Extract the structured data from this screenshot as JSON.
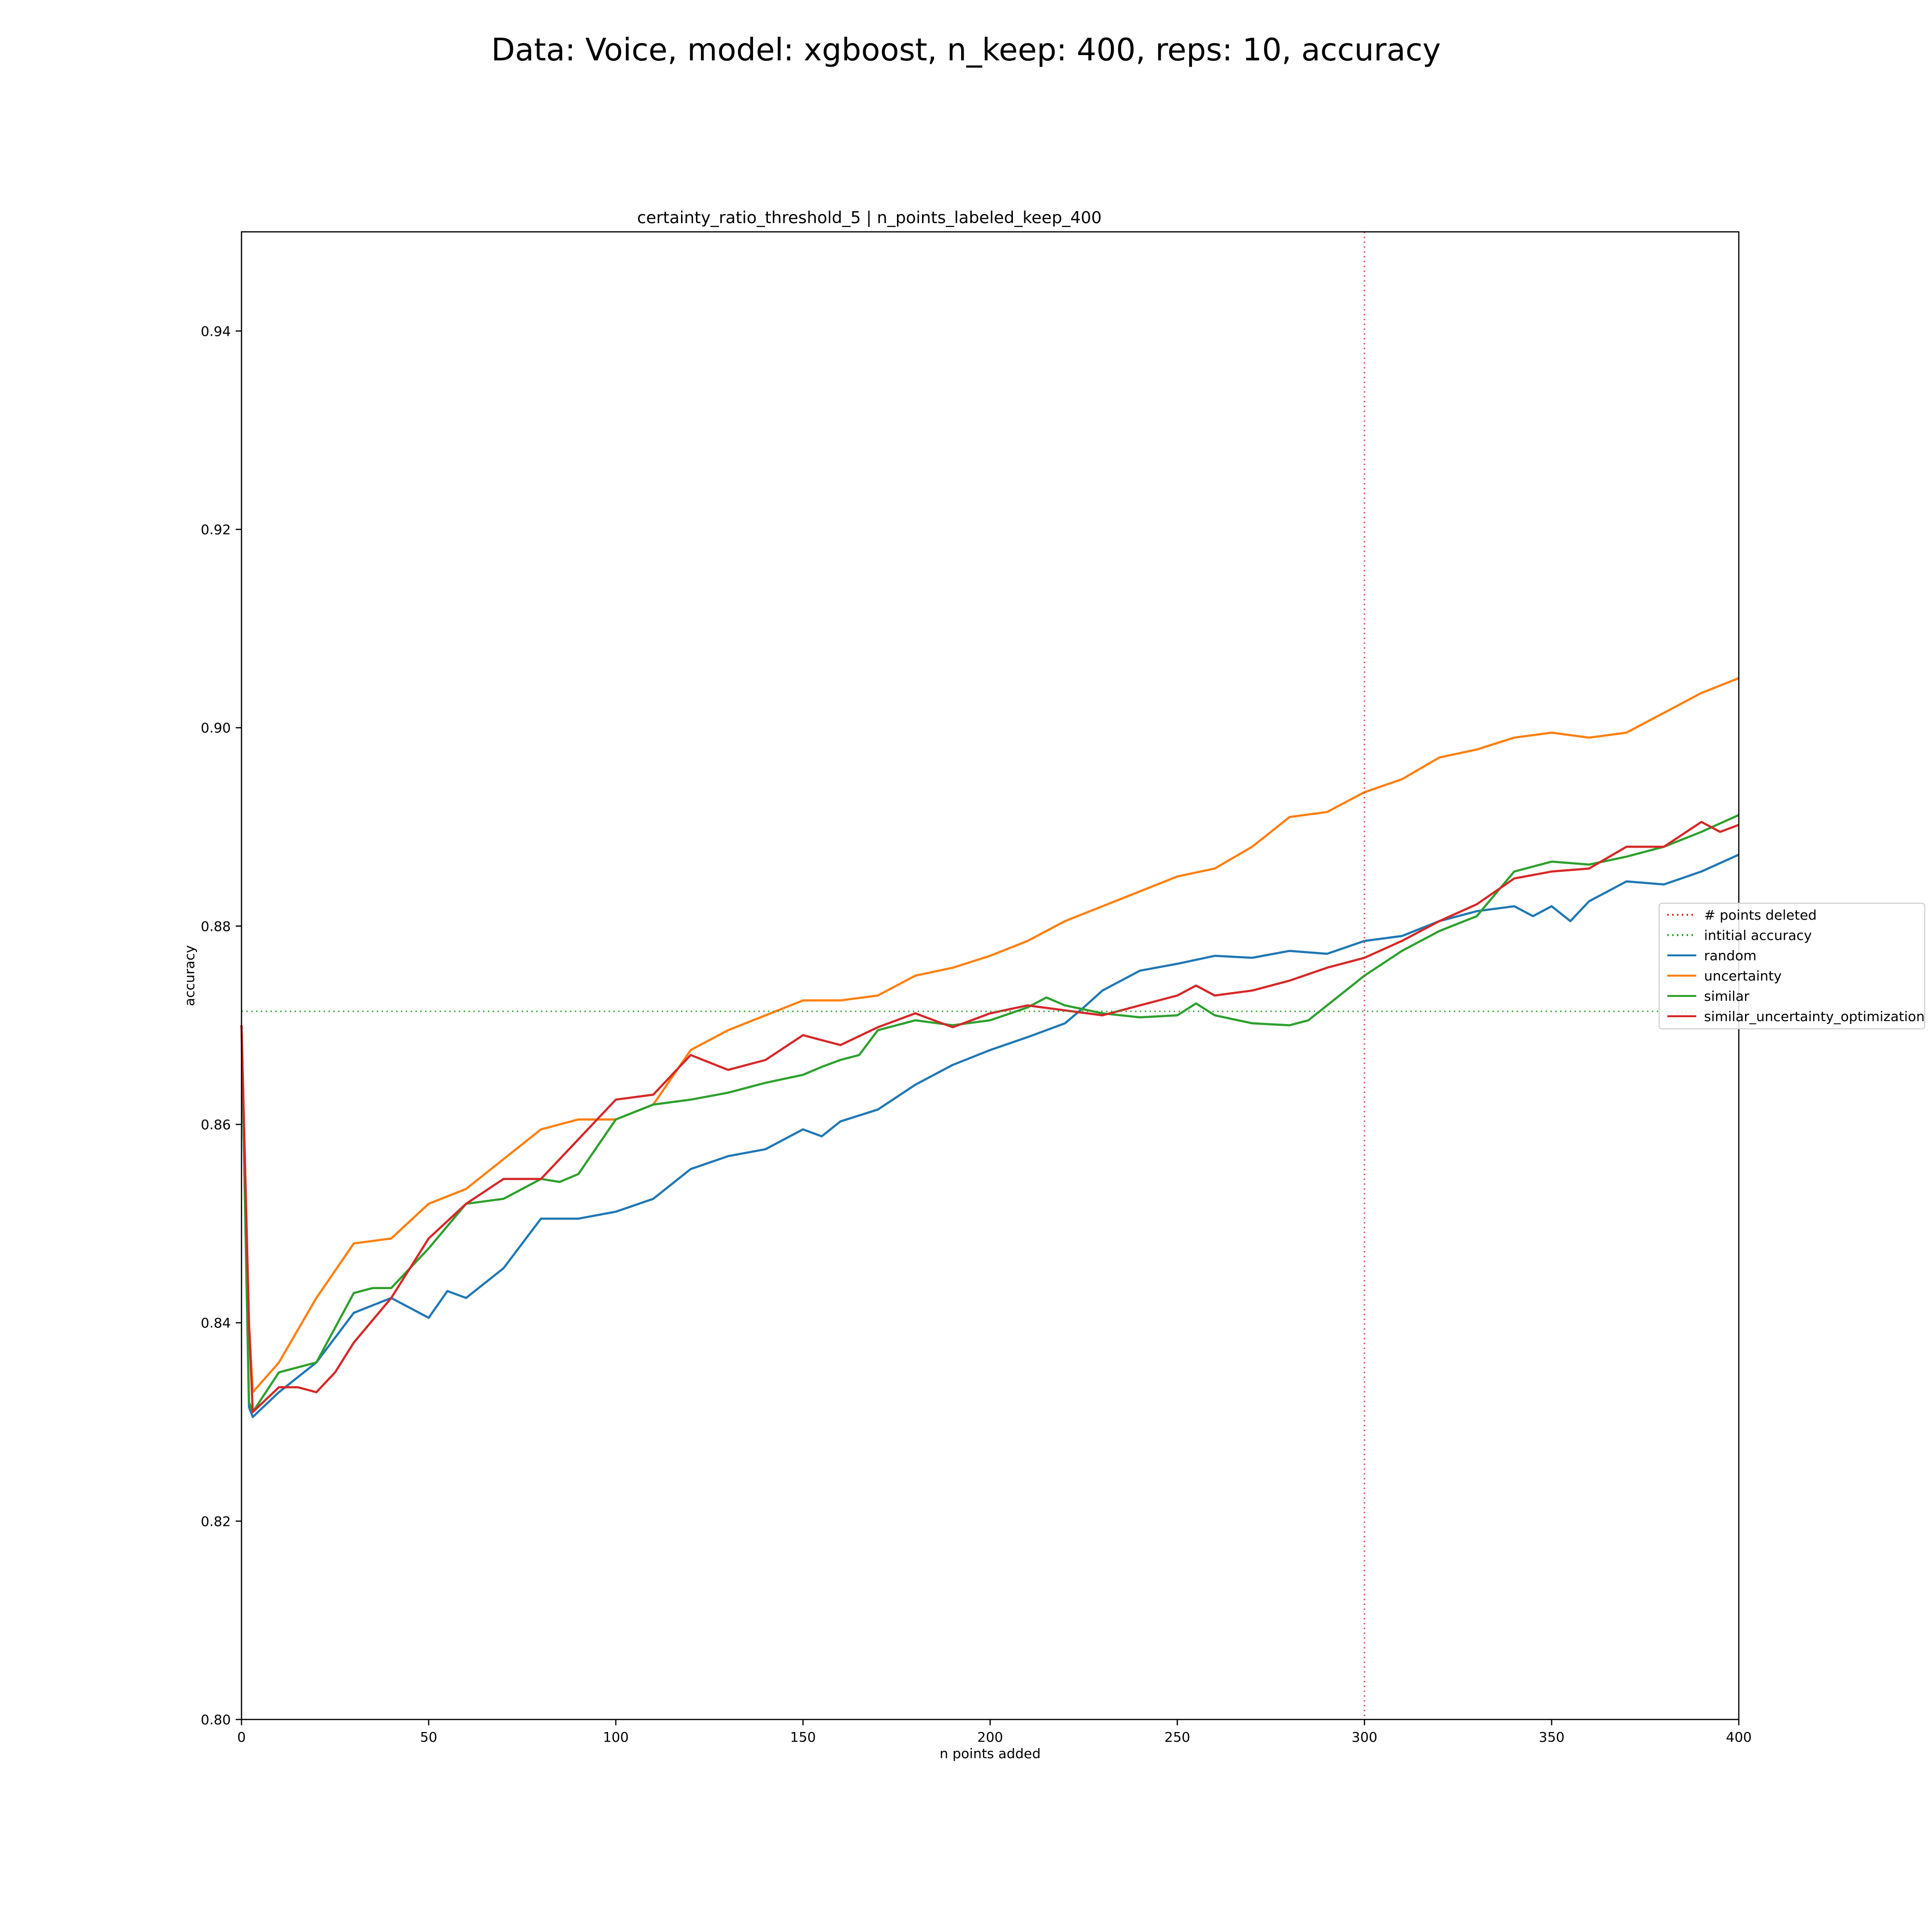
{
  "chart_data": {
    "type": "line",
    "title": "Data: Voice, model: xgboost, n_keep: 400, reps: 10, accuracy",
    "subtitle": "certainty_ratio_threshold_5 | n_points_labeled_keep_400",
    "xlabel": "n points added",
    "ylabel": "accuracy",
    "xlim": [
      0,
      400
    ],
    "ylim": [
      0.8,
      0.95
    ],
    "xticks": [
      0,
      50,
      100,
      150,
      200,
      250,
      300,
      350,
      400
    ],
    "yticks": [
      0.8,
      0.82,
      0.84,
      0.86,
      0.88,
      0.9,
      0.92,
      0.94
    ],
    "ytick_labels": [
      "0.80",
      "0.82",
      "0.84",
      "0.86",
      "0.88",
      "0.90",
      "0.92",
      "0.94"
    ],
    "grid": false,
    "legend_position": "right",
    "reference_lines": [
      {
        "name": "# points deleted",
        "orientation": "vertical",
        "value": 300,
        "color": "#d62728",
        "style": "dotted"
      },
      {
        "name": "intitial accuracy",
        "orientation": "horizontal",
        "value": 0.8714,
        "color": "#2ca02c",
        "style": "dotted"
      }
    ],
    "series": [
      {
        "name": "random",
        "color": "#1f77b4",
        "x": [
          0,
          2,
          3,
          10,
          20,
          30,
          40,
          45,
          50,
          55,
          60,
          70,
          80,
          90,
          100,
          110,
          120,
          130,
          140,
          150,
          155,
          160,
          170,
          180,
          190,
          200,
          210,
          220,
          225,
          230,
          240,
          250,
          260,
          270,
          280,
          290,
          300,
          310,
          320,
          330,
          340,
          345,
          350,
          355,
          360,
          370,
          380,
          390,
          400
        ],
        "y": [
          0.87,
          0.8315,
          0.8305,
          0.833,
          0.836,
          0.841,
          0.8425,
          0.8415,
          0.8405,
          0.8432,
          0.8425,
          0.8455,
          0.8505,
          0.8505,
          0.8512,
          0.8525,
          0.8555,
          0.8568,
          0.8575,
          0.8595,
          0.8588,
          0.8603,
          0.8615,
          0.864,
          0.866,
          0.8675,
          0.8688,
          0.8702,
          0.8718,
          0.8735,
          0.8755,
          0.8762,
          0.877,
          0.8768,
          0.8775,
          0.8772,
          0.8785,
          0.879,
          0.8805,
          0.8815,
          0.882,
          0.881,
          0.882,
          0.8805,
          0.8825,
          0.8845,
          0.8842,
          0.8855,
          0.8872
        ]
      },
      {
        "name": "uncertainty",
        "color": "#ff7f0e",
        "x": [
          0,
          2,
          3,
          10,
          20,
          30,
          40,
          50,
          60,
          70,
          80,
          90,
          100,
          110,
          120,
          130,
          140,
          150,
          160,
          170,
          180,
          190,
          200,
          210,
          220,
          230,
          240,
          250,
          260,
          270,
          280,
          290,
          300,
          310,
          320,
          330,
          340,
          350,
          360,
          370,
          380,
          390,
          400
        ],
        "y": [
          0.87,
          0.84,
          0.833,
          0.836,
          0.8425,
          0.848,
          0.8485,
          0.852,
          0.8535,
          0.8565,
          0.8595,
          0.8605,
          0.8605,
          0.862,
          0.8675,
          0.8695,
          0.871,
          0.8725,
          0.8725,
          0.873,
          0.875,
          0.8758,
          0.877,
          0.8785,
          0.8805,
          0.882,
          0.8835,
          0.885,
          0.8858,
          0.888,
          0.891,
          0.8915,
          0.8935,
          0.8948,
          0.897,
          0.8978,
          0.899,
          0.8995,
          0.899,
          0.8995,
          0.9015,
          0.9035,
          0.905
        ]
      },
      {
        "name": "similar",
        "color": "#2ca02c",
        "x": [
          0,
          2,
          3,
          10,
          20,
          30,
          35,
          40,
          50,
          60,
          70,
          75,
          80,
          85,
          90,
          100,
          110,
          120,
          130,
          140,
          150,
          155,
          160,
          165,
          170,
          180,
          190,
          200,
          210,
          215,
          220,
          230,
          240,
          250,
          255,
          260,
          270,
          280,
          285,
          290,
          300,
          310,
          320,
          330,
          340,
          350,
          360,
          370,
          380,
          390,
          400
        ],
        "y": [
          0.87,
          0.832,
          0.831,
          0.835,
          0.836,
          0.843,
          0.8435,
          0.8435,
          0.8475,
          0.852,
          0.8525,
          0.8535,
          0.8545,
          0.8542,
          0.855,
          0.8605,
          0.862,
          0.8625,
          0.8632,
          0.8642,
          0.865,
          0.8658,
          0.8665,
          0.867,
          0.8695,
          0.8705,
          0.87,
          0.8705,
          0.8718,
          0.8728,
          0.872,
          0.8712,
          0.8708,
          0.871,
          0.8722,
          0.871,
          0.8702,
          0.87,
          0.8705,
          0.872,
          0.875,
          0.8775,
          0.8795,
          0.881,
          0.8855,
          0.8865,
          0.8862,
          0.887,
          0.888,
          0.8895,
          0.8912
        ]
      },
      {
        "name": "similar_uncertainty_optimization",
        "color": "#d62728",
        "x": [
          0,
          2,
          3,
          10,
          15,
          20,
          25,
          30,
          40,
          50,
          60,
          70,
          80,
          90,
          100,
          110,
          120,
          130,
          140,
          150,
          160,
          170,
          180,
          190,
          200,
          210,
          220,
          230,
          240,
          250,
          255,
          260,
          270,
          280,
          290,
          300,
          310,
          320,
          330,
          340,
          350,
          360,
          370,
          380,
          390,
          395,
          400
        ],
        "y": [
          0.87,
          0.84,
          0.831,
          0.8335,
          0.8335,
          0.833,
          0.835,
          0.838,
          0.8425,
          0.8485,
          0.852,
          0.8545,
          0.8545,
          0.8585,
          0.8625,
          0.863,
          0.867,
          0.8655,
          0.8665,
          0.869,
          0.868,
          0.8698,
          0.8712,
          0.8698,
          0.8712,
          0.872,
          0.8715,
          0.871,
          0.872,
          0.873,
          0.874,
          0.873,
          0.8735,
          0.8745,
          0.8758,
          0.8768,
          0.8785,
          0.8805,
          0.8822,
          0.8848,
          0.8855,
          0.8858,
          0.888,
          0.888,
          0.8905,
          0.8895,
          0.8902
        ]
      }
    ]
  }
}
